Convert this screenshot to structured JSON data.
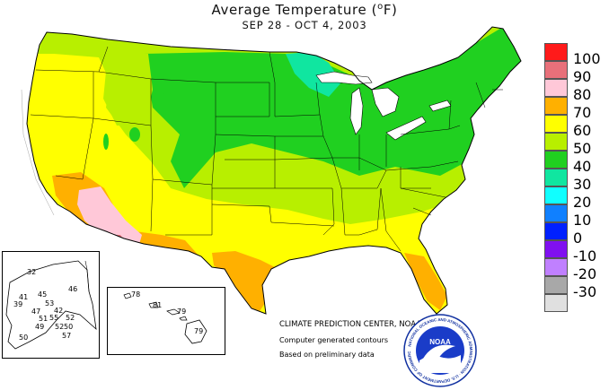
{
  "header": {
    "title": "Average Temperature (",
    "title_unit": "o",
    "title_suffix": "F)",
    "subtitle": "SEP 28 - OCT  4, 2003"
  },
  "legend": {
    "labels": [
      "100",
      "90",
      "80",
      "70",
      "60",
      "50",
      "40",
      "30",
      "20",
      "10",
      "0",
      "-10",
      "-20",
      "-30"
    ],
    "colors": [
      "#ff1a1a",
      "#e8707a",
      "#ffc8d8",
      "#ffb000",
      "#ffff00",
      "#b8ef00",
      "#20d020",
      "#10e6a0",
      "#10ffff",
      "#1080ff",
      "#0020ff",
      "#8010f0",
      "#c080ff",
      "#a8a8a8",
      "#e0e0e0"
    ]
  },
  "alaska": {
    "stations": [
      "32",
      "45",
      "46",
      "41",
      "53",
      "39",
      "42",
      "47",
      "55",
      "52",
      "51",
      "52",
      "49",
      "50",
      "57",
      "50"
    ]
  },
  "hawaii": {
    "stations": [
      "78",
      "81",
      "79",
      "79"
    ]
  },
  "credits": {
    "line1": "CLIMATE PREDICTION CENTER, NOAA",
    "line2": "Computer generated contours",
    "line3": "Based on preliminary data"
  },
  "logo": {
    "text": "NOAA",
    "ring_text": "NATIONAL OCEANIC AND ATMOSPHERIC ADMINISTRATION · U.S. DEPARTMENT OF COMMERCE",
    "icon": "noaa-seal-icon"
  }
}
